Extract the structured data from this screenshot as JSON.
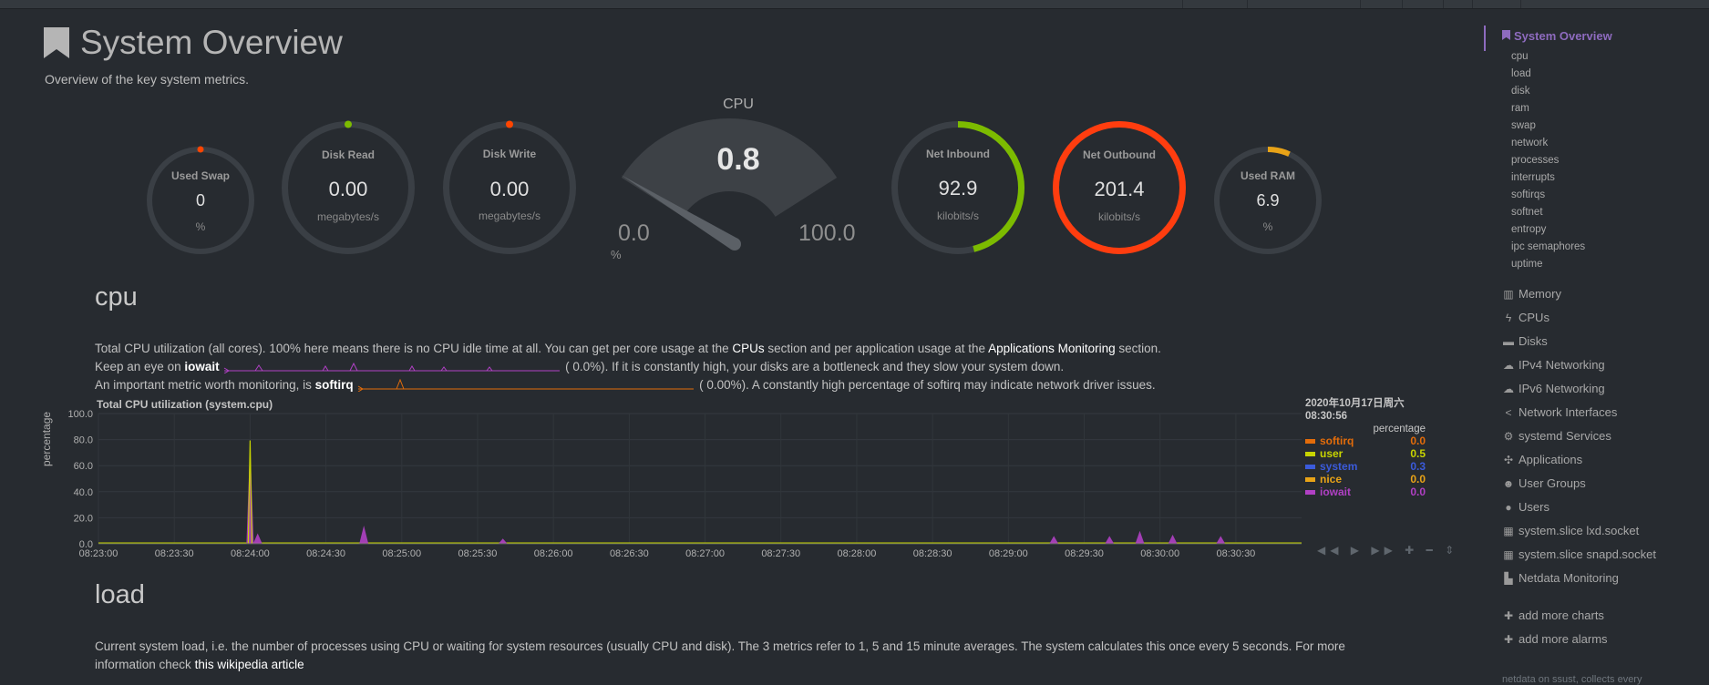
{
  "header": {
    "title": "System Overview",
    "subtitle": "Overview of the key system metrics.",
    "icon": "bookmark-icon"
  },
  "gauges": {
    "used_swap": {
      "title": "Used Swap",
      "value": "0",
      "unit": "%",
      "fill": 0,
      "color": "#ff4500"
    },
    "disk_read": {
      "title": "Disk Read",
      "value": "0.00",
      "unit": "megabytes/s",
      "fill": 0,
      "color": "#7cbb00"
    },
    "disk_write": {
      "title": "Disk Write",
      "value": "0.00",
      "unit": "megabytes/s",
      "fill": 0,
      "color": "#ff4500"
    },
    "cpu": {
      "title": "CPU",
      "value": "0.8",
      "min": "0.0",
      "max": "100.0",
      "unit": "%",
      "fill": 0.008
    },
    "net_inbound": {
      "title": "Net Inbound",
      "value": "92.9",
      "unit": "kilobits/s",
      "fill": 0.46,
      "color": "#7cbb00"
    },
    "net_outbound": {
      "title": "Net Outbound",
      "value": "201.4",
      "unit": "kilobits/s",
      "fill": 1.0,
      "color": "#ff3d0f"
    },
    "used_ram": {
      "title": "Used RAM",
      "value": "6.9",
      "unit": "%",
      "fill": 0.069,
      "color": "#e8a317"
    }
  },
  "cpu_section": {
    "title": "cpu",
    "line1_a": "Total CPU utilization (all cores). 100% here means there is no CPU idle time at all. You can get per core usage at the ",
    "line1_link1": "CPUs",
    "line1_b": " section and per application usage at the ",
    "line1_link2": "Applications Monitoring",
    "line1_c": " section.",
    "line2_a": "Keep an eye on ",
    "line2_b": "iowait",
    "line2_c": "(        0.0%). If it is constantly high, your disks are a bottleneck and they slow your system down.",
    "line3_a": "An important metric worth monitoring, is ",
    "line3_b": "softirq",
    "line3_c": "(        0.00%). A constantly high percentage of softirq may indicate network driver issues."
  },
  "chart_data": {
    "type": "area",
    "title": "Total CPU utilization (system.cpu)",
    "ylabel": "percentage",
    "ylim": [
      0,
      100
    ],
    "yticks": [
      "100.0",
      "80.0",
      "60.0",
      "40.0",
      "20.0",
      "0.0"
    ],
    "xticks": [
      "08:23:00",
      "08:23:30",
      "08:24:00",
      "08:24:30",
      "08:25:00",
      "08:25:30",
      "08:26:00",
      "08:26:30",
      "08:27:00",
      "08:27:30",
      "08:28:00",
      "08:28:30",
      "08:29:00",
      "08:29:30",
      "08:30:00",
      "08:30:30"
    ],
    "timestamp_date": "2020年10月17日周六",
    "timestamp_time": "08:30:56",
    "units": "percentage",
    "series": [
      {
        "name": "softirq",
        "value": "0.0",
        "color": "#e36c0a"
      },
      {
        "name": "user",
        "value": "0.5",
        "color": "#c8d400"
      },
      {
        "name": "system",
        "value": "0.3",
        "color": "#3b5bdb"
      },
      {
        "name": "nice",
        "value": "0.0",
        "color": "#e8a317"
      },
      {
        "name": "iowait",
        "value": "0.0",
        "color": "#b040c4"
      }
    ],
    "spikes": [
      {
        "t": "08:24:00",
        "value": 78
      },
      {
        "t": "08:24:03",
        "value": 8
      },
      {
        "t": "08:24:45",
        "value": 14
      },
      {
        "t": "08:25:40",
        "value": 4
      },
      {
        "t": "08:29:18",
        "value": 6
      },
      {
        "t": "08:29:40",
        "value": 6
      },
      {
        "t": "08:29:52",
        "value": 10
      },
      {
        "t": "08:30:05",
        "value": 7
      },
      {
        "t": "08:30:24",
        "value": 6
      }
    ]
  },
  "load_section": {
    "title": "load",
    "line1": "Current system load, i.e. the number of processes using CPU or waiting for system resources (usually CPU and disk). The 3 metrics refer to 1, 5 and 15 minute averages. The system calculates this once every 5 seconds. For more",
    "line2_a": "information check ",
    "line2_link": "this wikipedia article"
  },
  "chart_controls": "◀◀ ▶ ▶▶ ✚ ━   ⇕",
  "sidebar": {
    "active": "System Overview",
    "sub_items": [
      "cpu",
      "load",
      "disk",
      "ram",
      "swap",
      "network",
      "processes",
      "interrupts",
      "softirqs",
      "softnet",
      "entropy",
      "ipc semaphores",
      "uptime"
    ],
    "items": [
      {
        "label": "Memory",
        "icon": "memory-icon",
        "glyph": "▥"
      },
      {
        "label": "CPUs",
        "icon": "bolt-icon",
        "glyph": "ϟ"
      },
      {
        "label": "Disks",
        "icon": "disk-icon",
        "glyph": "▬"
      },
      {
        "label": "IPv4 Networking",
        "icon": "cloud-icon",
        "glyph": "☁"
      },
      {
        "label": "IPv6 Networking",
        "icon": "cloud-icon",
        "glyph": "☁"
      },
      {
        "label": "Network Interfaces",
        "icon": "share-icon",
        "glyph": "<"
      },
      {
        "label": "systemd Services",
        "icon": "gears-icon",
        "glyph": "⚙"
      },
      {
        "label": "Applications",
        "icon": "gamepad-icon",
        "glyph": "✣"
      },
      {
        "label": "User Groups",
        "icon": "users-icon",
        "glyph": "☻"
      },
      {
        "label": "Users",
        "icon": "user-icon",
        "glyph": "●"
      },
      {
        "label": "system.slice lxd.socket",
        "icon": "grid-icon",
        "glyph": "▦"
      },
      {
        "label": "system.slice snapd.socket",
        "icon": "grid-icon",
        "glyph": "▦"
      },
      {
        "label": "Netdata Monitoring",
        "icon": "bar-chart-icon",
        "glyph": "▙"
      }
    ],
    "add_charts": "add more charts",
    "add_alarms": "add more alarms",
    "footer_partial": "netdata on ssust, collects every"
  }
}
